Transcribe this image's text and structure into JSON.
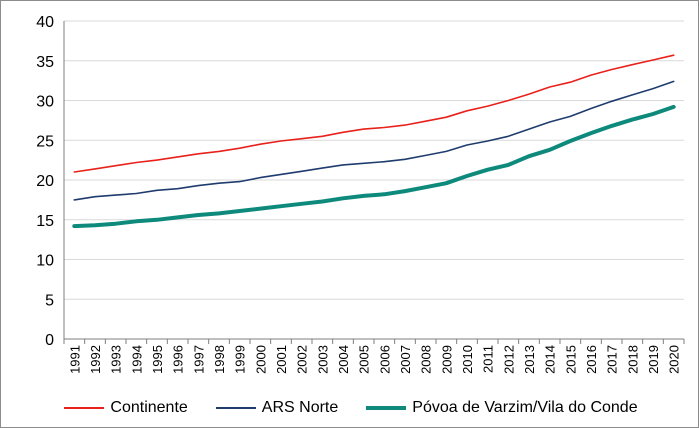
{
  "chart_data": {
    "type": "line",
    "x": [
      "1991",
      "1992",
      "1993",
      "1994",
      "1995",
      "1996",
      "1997",
      "1998",
      "1999",
      "2000",
      "2001",
      "2002",
      "2003",
      "2004",
      "2005",
      "2006",
      "2007",
      "2008",
      "2009",
      "2010",
      "2011",
      "2012",
      "2013",
      "2014",
      "2015",
      "2016",
      "2017",
      "2018",
      "2019",
      "2020"
    ],
    "ylim": [
      0,
      40
    ],
    "yticks": [
      0,
      5,
      10,
      15,
      20,
      25,
      30,
      35,
      40
    ],
    "grid": true,
    "legend_position": "bottom",
    "series": [
      {
        "name": "Continente",
        "color": "#e8211b",
        "values": [
          21.0,
          21.4,
          21.8,
          22.2,
          22.5,
          22.9,
          23.3,
          23.6,
          24.0,
          24.5,
          24.9,
          25.2,
          25.5,
          26.0,
          26.4,
          26.6,
          26.9,
          27.4,
          27.9,
          28.7,
          29.3,
          30.0,
          30.8,
          31.7,
          32.3,
          33.2,
          33.9,
          34.5,
          35.1,
          35.7
        ]
      },
      {
        "name": "ARS Norte",
        "color": "#1f3c6e",
        "values": [
          17.5,
          17.9,
          18.1,
          18.3,
          18.7,
          18.9,
          19.3,
          19.6,
          19.8,
          20.3,
          20.7,
          21.1,
          21.5,
          21.9,
          22.1,
          22.3,
          22.6,
          23.1,
          23.6,
          24.4,
          24.9,
          25.5,
          26.4,
          27.3,
          28.0,
          29.0,
          29.9,
          30.7,
          31.5,
          32.4
        ]
      },
      {
        "name": "Póvoa de Varzim/Vila do Conde",
        "color": "#0e8a7c",
        "values": [
          14.2,
          14.3,
          14.5,
          14.8,
          15.0,
          15.3,
          15.6,
          15.8,
          16.1,
          16.4,
          16.7,
          17.0,
          17.3,
          17.7,
          18.0,
          18.2,
          18.6,
          19.1,
          19.6,
          20.5,
          21.3,
          21.9,
          23.0,
          23.8,
          24.9,
          25.9,
          26.8,
          27.6,
          28.3,
          29.2
        ]
      }
    ]
  }
}
